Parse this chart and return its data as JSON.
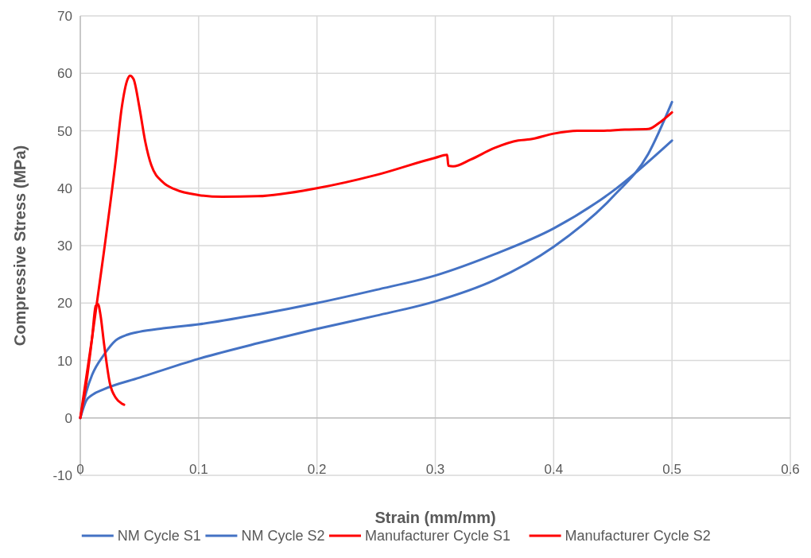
{
  "chart_data": {
    "type": "line",
    "xlabel": "Strain (mm/mm)",
    "ylabel": "Compressive Stress (MPa)",
    "xlim": [
      0,
      0.6
    ],
    "xticks": [
      0,
      0.1,
      0.2,
      0.3,
      0.4,
      0.5,
      0.6
    ],
    "ylim": [
      -10,
      70
    ],
    "yticks": [
      -10,
      0,
      10,
      20,
      30,
      40,
      50,
      60,
      70
    ],
    "grid": true,
    "legend": "bottom",
    "marker": "none",
    "line_style": "solid",
    "series": [
      {
        "name": "NM Cycle S1",
        "color": "#4472c4",
        "x": [
          0,
          0.005,
          0.01,
          0.02,
          0.03,
          0.04,
          0.05,
          0.07,
          0.1,
          0.15,
          0.2,
          0.25,
          0.3,
          0.35,
          0.4,
          0.45,
          0.5
        ],
        "values": [
          0,
          4.5,
          7.5,
          11,
          13.5,
          14.5,
          15,
          15.6,
          16.3,
          18,
          20,
          22.3,
          24.8,
          28.5,
          33,
          39.5,
          48.3
        ]
      },
      {
        "name": "NM Cycle S2",
        "color": "#4472c4",
        "x": [
          0,
          0.005,
          0.01,
          0.02,
          0.05,
          0.1,
          0.15,
          0.2,
          0.25,
          0.3,
          0.35,
          0.4,
          0.45,
          0.48,
          0.5
        ],
        "values": [
          0,
          3,
          4,
          5,
          7,
          10.3,
          13,
          15.5,
          17.8,
          20.3,
          24,
          29.8,
          38.5,
          46,
          55
        ]
      },
      {
        "name": "Manufacturer Cycle S1",
        "color": "#ff0000",
        "x": [
          0,
          0.01,
          0.02,
          0.03,
          0.035,
          0.04,
          0.042,
          0.045,
          0.05,
          0.055,
          0.06,
          0.07,
          0.08,
          0.1,
          0.12,
          0.15,
          0.2,
          0.25,
          0.3,
          0.31,
          0.311,
          0.315,
          0.33,
          0.35,
          0.37,
          0.38,
          0.4,
          0.42,
          0.44,
          0.46,
          0.48,
          0.49,
          0.5
        ],
        "values": [
          0,
          14,
          29,
          45,
          54,
          59,
          59.6,
          59,
          54,
          48,
          44,
          41,
          39.8,
          38.8,
          38.5,
          38.6,
          40,
          42.3,
          45.3,
          45.8,
          43.9,
          43.8,
          45,
          47,
          48.3,
          48.5,
          49.5,
          50,
          50,
          50.2,
          50.3,
          51.5,
          53.2
        ]
      },
      {
        "name": "Manufacturer Cycle S2",
        "color": "#ff0000",
        "x": [
          0,
          0.005,
          0.01,
          0.013,
          0.015,
          0.017,
          0.02,
          0.025,
          0.03,
          0.035,
          0.037
        ],
        "values": [
          0,
          6,
          14,
          19.5,
          19.8,
          18,
          13,
          6,
          3.5,
          2.5,
          2.3
        ]
      }
    ]
  }
}
